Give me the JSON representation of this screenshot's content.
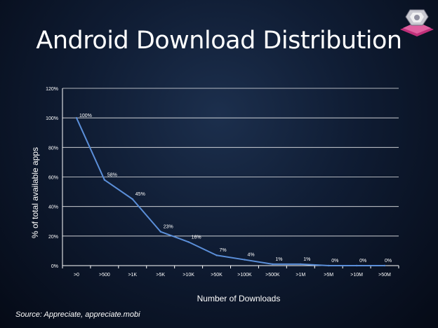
{
  "slide": {
    "title": "Android Download Distribution",
    "source": "Source: Appreciate, appreciate.mobi",
    "logo_icon": "pink-cushion-gem-icon"
  },
  "chart_data": {
    "type": "line",
    "title": "Android Download Distribution",
    "xlabel": "Number of Downloads",
    "ylabel": "% of total available apps",
    "categories": [
      ">0",
      ">500",
      ">1K",
      ">5K",
      ">10K",
      ">50K",
      ">100K",
      ">500K",
      ">1M",
      ">5M",
      ">10M",
      ">50M"
    ],
    "values": [
      100,
      58,
      45,
      23,
      16,
      7,
      4,
      1,
      1,
      0,
      0,
      0
    ],
    "data_labels": [
      "100%",
      "58%",
      "45%",
      "23%",
      "16%",
      "7%",
      "4%",
      "1%",
      "1%",
      "0%",
      "0%",
      "0%"
    ],
    "y_ticks": [
      "0%",
      "20%",
      "40%",
      "60%",
      "80%",
      "100%",
      "120%"
    ],
    "ylim": [
      0,
      120
    ],
    "grid": true,
    "legend": "none",
    "line_color": "#5b8fd9",
    "grid_color": "#ffffff"
  }
}
